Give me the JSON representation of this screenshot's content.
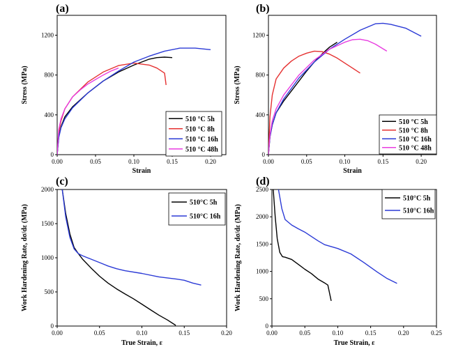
{
  "chart_data": [
    {
      "type": "line",
      "panel_label": "(a)",
      "xlabel": "Strain",
      "ylabel": "Stress (MPa)",
      "xlim": [
        0,
        0.22
      ],
      "ylim": [
        0,
        1400
      ],
      "xticks": [
        0,
        0.05,
        0.1,
        0.15,
        0.2
      ],
      "xtick_labels": [
        "0.00",
        "0.05",
        "0.10",
        "0.15",
        "0.20"
      ],
      "yticks": [
        0,
        400,
        800,
        1200
      ],
      "ytick_labels": [
        "0",
        "400",
        "800",
        "1200"
      ],
      "legend_position": "bottom-right",
      "series": [
        {
          "name": "510 °C 5h",
          "color": "#000000",
          "x": [
            0,
            0.002,
            0.005,
            0.01,
            0.02,
            0.04,
            0.06,
            0.08,
            0.1,
            0.12,
            0.13,
            0.14,
            0.15
          ],
          "y": [
            0,
            180,
            280,
            380,
            480,
            620,
            740,
            830,
            900,
            960,
            975,
            980,
            975
          ]
        },
        {
          "name": "510 °C 8h",
          "color": "#e53030",
          "x": [
            0,
            0.002,
            0.005,
            0.01,
            0.02,
            0.04,
            0.06,
            0.08,
            0.1,
            0.12,
            0.13,
            0.14,
            0.141,
            0.142
          ],
          "y": [
            0,
            220,
            340,
            460,
            580,
            730,
            830,
            895,
            920,
            900,
            870,
            820,
            760,
            700
          ]
        },
        {
          "name": "510 °C 16h",
          "color": "#2b3ad6",
          "x": [
            0,
            0.002,
            0.005,
            0.01,
            0.02,
            0.04,
            0.06,
            0.08,
            0.1,
            0.12,
            0.14,
            0.16,
            0.18,
            0.2
          ],
          "y": [
            0,
            170,
            270,
            360,
            470,
            620,
            740,
            840,
            930,
            990,
            1040,
            1070,
            1070,
            1055
          ]
        },
        {
          "name": "510 °C 48h",
          "color": "#e83ce0",
          "x": [
            0,
            0.002,
            0.005,
            0.01,
            0.02,
            0.03,
            0.04,
            0.05,
            0.06,
            0.07,
            0.08
          ],
          "y": [
            0,
            250,
            360,
            460,
            580,
            650,
            710,
            755,
            800,
            840,
            870
          ]
        }
      ]
    },
    {
      "type": "line",
      "panel_label": "(b)",
      "xlabel": "Strain",
      "ylabel": "Stress (MPa)",
      "xlim": [
        0,
        0.22
      ],
      "ylim": [
        0,
        1400
      ],
      "xticks": [
        0,
        0.05,
        0.1,
        0.15,
        0.2
      ],
      "xtick_labels": [
        "0.00",
        "0.05",
        "0.10",
        "0.15",
        "0.20"
      ],
      "yticks": [
        0,
        400,
        800,
        1200
      ],
      "ytick_labels": [
        "0",
        "400",
        "800",
        "1200"
      ],
      "legend_position": "bottom-right",
      "series": [
        {
          "name": "510 °C 5h",
          "color": "#000000",
          "x": [
            0,
            0.002,
            0.005,
            0.01,
            0.02,
            0.03,
            0.04,
            0.05,
            0.06,
            0.07,
            0.08,
            0.09
          ],
          "y": [
            0,
            180,
            300,
            420,
            540,
            640,
            740,
            840,
            930,
            1010,
            1080,
            1130
          ]
        },
        {
          "name": "510 °C 8h",
          "color": "#e53030",
          "x": [
            0,
            0.002,
            0.005,
            0.01,
            0.02,
            0.03,
            0.04,
            0.05,
            0.06,
            0.07,
            0.08,
            0.09,
            0.1,
            0.11,
            0.12
          ],
          "y": [
            0,
            380,
            600,
            760,
            870,
            940,
            990,
            1020,
            1040,
            1035,
            1010,
            970,
            920,
            870,
            820
          ]
        },
        {
          "name": "510 °C 16h",
          "color": "#2b3ad6",
          "x": [
            0,
            0.002,
            0.005,
            0.01,
            0.02,
            0.04,
            0.06,
            0.08,
            0.1,
            0.12,
            0.14,
            0.15,
            0.16,
            0.18,
            0.2
          ],
          "y": [
            0,
            180,
            300,
            420,
            560,
            770,
            930,
            1060,
            1160,
            1250,
            1315,
            1320,
            1310,
            1270,
            1190
          ]
        },
        {
          "name": "510 °C 48h",
          "color": "#e83ce0",
          "x": [
            0,
            0.002,
            0.005,
            0.01,
            0.02,
            0.04,
            0.06,
            0.08,
            0.1,
            0.11,
            0.12,
            0.13,
            0.14,
            0.155
          ],
          "y": [
            0,
            200,
            340,
            460,
            600,
            800,
            950,
            1060,
            1130,
            1155,
            1160,
            1145,
            1110,
            1040
          ]
        }
      ]
    },
    {
      "type": "line",
      "panel_label": "(c)",
      "xlabel": "True Strain, ε",
      "ylabel": "Work Hardening Rate, dσ/dε (MPa)",
      "xlim": [
        0,
        0.2
      ],
      "ylim": [
        0,
        2000
      ],
      "xticks": [
        0,
        0.05,
        0.1,
        0.15,
        0.2
      ],
      "xtick_labels": [
        "0.00",
        "0.05",
        "0.10",
        "0.15",
        "0.20"
      ],
      "yticks": [
        0,
        500,
        1000,
        1500,
        2000
      ],
      "ytick_labels": [
        "0",
        "500",
        "1000",
        "1500",
        "2000"
      ],
      "legend_position": "top-right",
      "series": [
        {
          "name": "510°C 5h",
          "color": "#000000",
          "x": [
            0.006,
            0.01,
            0.015,
            0.02,
            0.025,
            0.03,
            0.04,
            0.05,
            0.06,
            0.07,
            0.08,
            0.09,
            0.1,
            0.11,
            0.12,
            0.13,
            0.14
          ],
          "y": [
            2000,
            1650,
            1350,
            1150,
            1060,
            980,
            850,
            730,
            630,
            545,
            470,
            400,
            320,
            240,
            160,
            90,
            10
          ]
        },
        {
          "name": "510°C 16h",
          "color": "#2b3ad6",
          "x": [
            0.006,
            0.01,
            0.015,
            0.02,
            0.025,
            0.03,
            0.04,
            0.05,
            0.06,
            0.07,
            0.08,
            0.1,
            0.12,
            0.14,
            0.15,
            0.16,
            0.17
          ],
          "y": [
            2000,
            1600,
            1300,
            1130,
            1060,
            1030,
            980,
            930,
            880,
            840,
            810,
            770,
            720,
            690,
            670,
            630,
            600
          ]
        }
      ]
    },
    {
      "type": "line",
      "panel_label": "(d)",
      "xlabel": "True Strain, ε",
      "ylabel": "Work Hardening Rate, dσ/dε (MPa)",
      "xlim": [
        0,
        0.25
      ],
      "ylim": [
        0,
        2500
      ],
      "xticks": [
        0,
        0.05,
        0.1,
        0.15,
        0.2,
        0.25
      ],
      "xtick_labels": [
        "0.00",
        "0.05",
        "0.10",
        "0.15",
        "0.20",
        "0.25"
      ],
      "yticks": [
        0,
        500,
        1000,
        1500,
        2000,
        2500
      ],
      "ytick_labels": [
        "0",
        "500",
        "1000",
        "1500",
        "2000",
        "2500"
      ],
      "legend_position": "top-right",
      "series": [
        {
          "name": "510°C 5h",
          "color": "#000000",
          "x": [
            0.002,
            0.005,
            0.008,
            0.012,
            0.016,
            0.02,
            0.03,
            0.04,
            0.05,
            0.06,
            0.07,
            0.08,
            0.085,
            0.09
          ],
          "y": [
            2500,
            2000,
            1600,
            1350,
            1270,
            1260,
            1220,
            1130,
            1040,
            960,
            860,
            790,
            750,
            460
          ]
        },
        {
          "name": "510°C 16h",
          "color": "#2b3ad6",
          "x": [
            0.01,
            0.015,
            0.02,
            0.03,
            0.04,
            0.05,
            0.06,
            0.07,
            0.08,
            0.1,
            0.12,
            0.14,
            0.16,
            0.175,
            0.19
          ],
          "y": [
            2500,
            2150,
            1950,
            1850,
            1780,
            1720,
            1640,
            1560,
            1490,
            1420,
            1320,
            1160,
            990,
            870,
            780
          ]
        }
      ]
    }
  ]
}
